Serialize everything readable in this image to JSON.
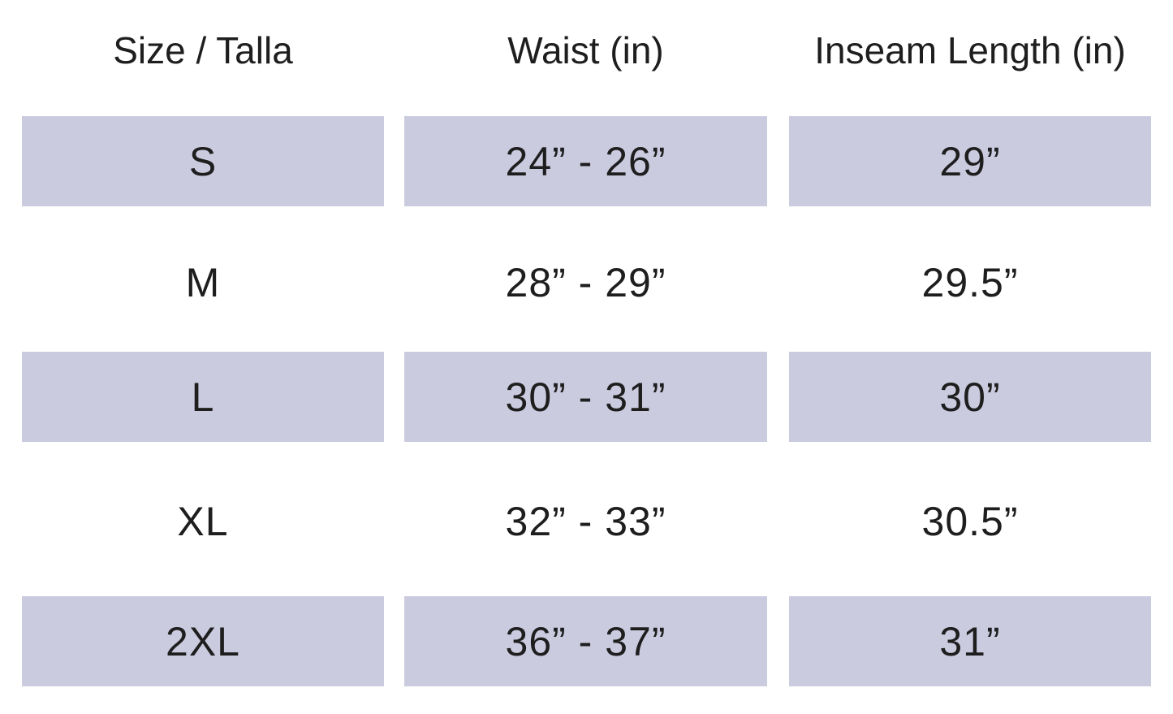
{
  "table": {
    "header": [
      "Size / Talla",
      "Waist (in)",
      "Inseam Length (in)"
    ],
    "rows": [
      [
        "S",
        "24” - 26”",
        "29”"
      ],
      [
        "M",
        "28” - 29”",
        "29.5”"
      ],
      [
        "L",
        "30” - 31”",
        "30”"
      ],
      [
        "XL",
        "32” - 33”",
        "30.5”"
      ],
      [
        "2XL",
        "36” - 37”",
        "31”"
      ]
    ]
  }
}
